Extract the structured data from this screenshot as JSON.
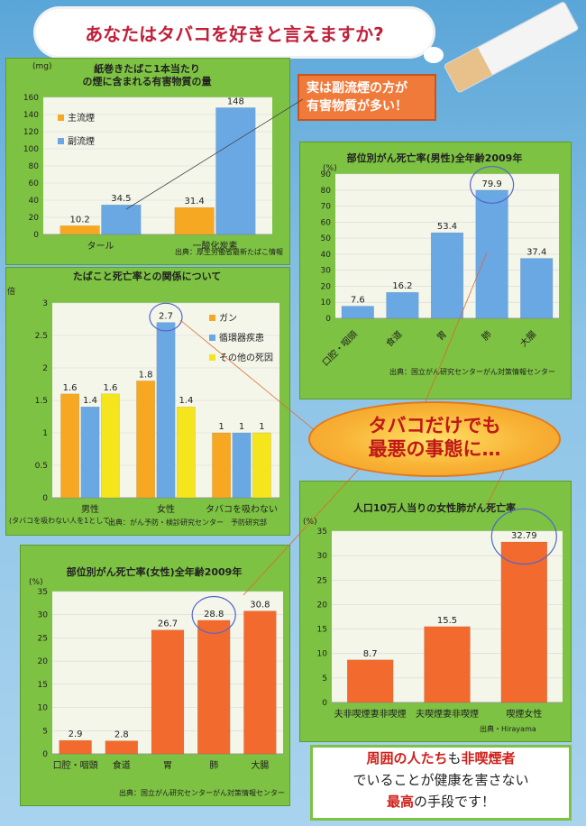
{
  "poster_title": "あなたはタバコを好きと言えますか?",
  "callout": [
    "実は副流煙の方が",
    "有害物質が多い！"
  ],
  "oval": [
    "タバコだけでも",
    "最悪の事態に…"
  ],
  "bottom": {
    "l1a": "周囲の人たち",
    "l1b": "も",
    "l1c": "非喫煙者",
    "l2": "でいることが健康を害さない",
    "l3a": "最高",
    "l3b": "の手段です！"
  },
  "chart_data": [
    {
      "id": "c1",
      "type": "bar",
      "title_lines": [
        "紙巻きたばこ1本当たり",
        "の煙に含まれる有害物質の量"
      ],
      "unit": "(mg)",
      "categories": [
        "タール",
        "一酸化炭素"
      ],
      "series": [
        {
          "name": "主流煙",
          "color": "#f7a823",
          "values": [
            10.2,
            31.4
          ]
        },
        {
          "name": "副流煙",
          "color": "#6aa8e4",
          "values": [
            34.5,
            148
          ]
        }
      ],
      "ylim": [
        0,
        160
      ],
      "yticks": [
        0,
        20,
        40,
        60,
        80,
        100,
        120,
        140,
        160
      ],
      "source": "出典：厚生労働省最新たばこ情報"
    },
    {
      "id": "c2",
      "type": "bar",
      "title_lines": [
        "部位別がん死亡率(男性)全年齢2009年"
      ],
      "unit": "(%)",
      "categories": [
        "口腔・咽頭",
        "食道",
        "胃",
        "肺",
        "大腸"
      ],
      "series": [
        {
          "color": "#6aa8e4",
          "values": [
            7.6,
            16.2,
            53.4,
            79.9,
            37.4
          ]
        }
      ],
      "ylim": [
        0,
        90
      ],
      "yticks": [
        0,
        10,
        20,
        30,
        40,
        50,
        60,
        70,
        80,
        90
      ],
      "source": "出典：国立がん研究センターがん対策情報センター"
    },
    {
      "id": "c3",
      "type": "bar",
      "title_lines": [
        "たばこと死亡率との関係について"
      ],
      "unit": "倍",
      "categories": [
        "男性",
        "女性",
        "タバコを吸わない"
      ],
      "series": [
        {
          "name": "ガン",
          "color": "#f7a823",
          "values": [
            1.6,
            1.8,
            1
          ]
        },
        {
          "name": "循環器疾患",
          "color": "#6aa8e4",
          "values": [
            1.4,
            2.7,
            1
          ]
        },
        {
          "name": "その他の死因",
          "color": "#f5e51c",
          "values": [
            1.6,
            1.4,
            1
          ]
        }
      ],
      "ylim": [
        0,
        3
      ],
      "yticks": [
        0,
        0.5,
        1,
        1.5,
        2,
        2.5,
        3
      ],
      "subnote": "(タバコを吸わない人を1として)",
      "source": "出典：がん予防・検診研究センター　予防研究部"
    },
    {
      "id": "c4",
      "type": "bar",
      "title_lines": [
        "人口10万人当りの女性肺がん死亡率"
      ],
      "unit": "(%)",
      "categories": [
        "夫非喫煙妻非喫煙",
        "夫喫煙妻非喫煙",
        "喫煙女性"
      ],
      "series": [
        {
          "color": "#f26a2e",
          "values": [
            8.7,
            15.5,
            32.79
          ]
        }
      ],
      "ylim": [
        0,
        35
      ],
      "yticks": [
        0,
        5,
        10,
        15,
        20,
        25,
        30,
        35
      ],
      "source": "出典・Hirayama"
    },
    {
      "id": "c5",
      "type": "bar",
      "title_lines": [
        "部位別がん死亡率(女性)全年齢2009年"
      ],
      "unit": "(%)",
      "categories": [
        "口腔・咽頭",
        "食道",
        "胃",
        "肺",
        "大腸"
      ],
      "series": [
        {
          "color": "#f26a2e",
          "values": [
            2.9,
            2.8,
            26.7,
            28.8,
            30.8
          ]
        }
      ],
      "ylim": [
        0,
        35
      ],
      "yticks": [
        0,
        5,
        10,
        15,
        20,
        25,
        30,
        35
      ],
      "source": "出典：国立がん研究センターがん対策情報センター"
    }
  ]
}
